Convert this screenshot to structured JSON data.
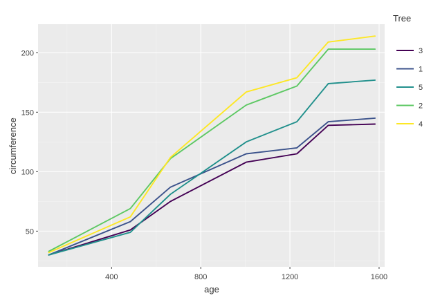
{
  "chart_data": {
    "type": "line",
    "xlabel": "age",
    "ylabel": "circumference",
    "x": [
      118,
      484,
      664,
      1004,
      1231,
      1372,
      1582
    ],
    "xlim": [
      70,
      1625
    ],
    "ylim": [
      20,
      224
    ],
    "x_ticks": [
      400,
      800,
      1200,
      1600
    ],
    "y_ticks": [
      50,
      100,
      150,
      200
    ],
    "x_tick_labels": [
      "400",
      "800",
      "1200",
      "1600"
    ],
    "y_tick_labels": [
      "50",
      "100",
      "150",
      "200"
    ],
    "grid": true,
    "legend": {
      "title": "Tree",
      "placement": "right",
      "entries": [
        "3",
        "1",
        "5",
        "2",
        "4"
      ]
    },
    "series": [
      {
        "name": "3",
        "color": "#440154",
        "values": [
          30,
          51,
          75,
          108,
          115,
          139,
          140
        ]
      },
      {
        "name": "1",
        "color": "#3b528b",
        "values": [
          30,
          58,
          87,
          115,
          120,
          142,
          145
        ]
      },
      {
        "name": "5",
        "color": "#21908c",
        "values": [
          30,
          49,
          81,
          125,
          142,
          174,
          177
        ]
      },
      {
        "name": "2",
        "color": "#5dc863",
        "values": [
          33,
          69,
          111,
          156,
          172,
          203,
          203
        ]
      },
      {
        "name": "4",
        "color": "#fde725",
        "values": [
          32,
          62,
          112,
          167,
          179,
          209,
          214
        ]
      }
    ]
  }
}
